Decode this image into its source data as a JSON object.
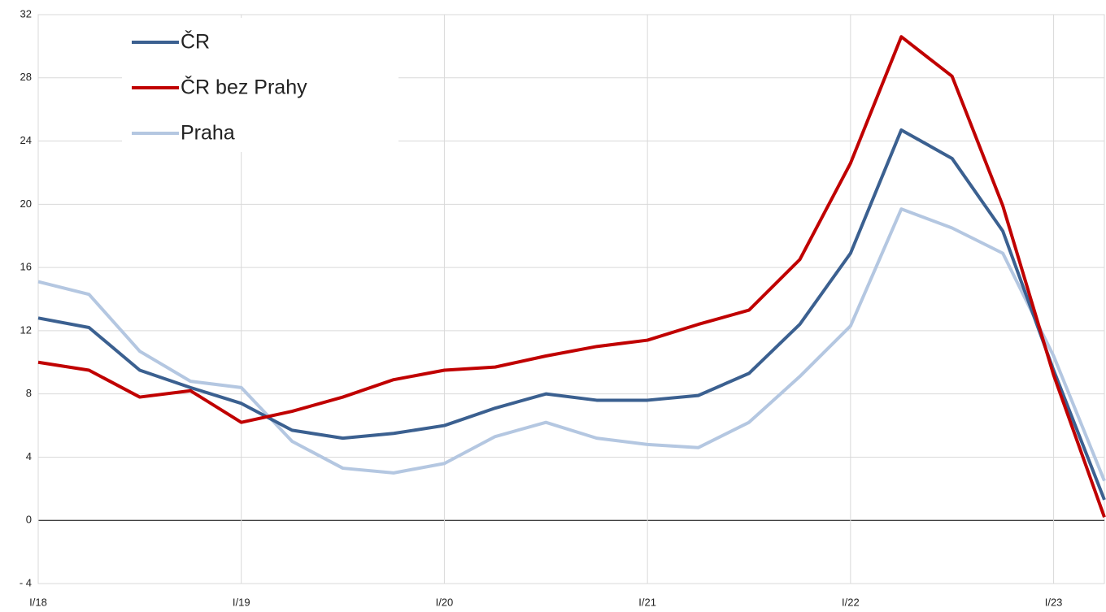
{
  "chart_data": {
    "type": "line",
    "categories": [
      "I/18",
      null,
      null,
      null,
      "I/19",
      null,
      null,
      null,
      "I/20",
      null,
      null,
      null,
      "I/21",
      null,
      null,
      null,
      "I/22",
      null,
      null,
      null,
      "I/23",
      null
    ],
    "series": [
      {
        "name": "ČR",
        "color": "#3b6090",
        "values": [
          12.8,
          12.2,
          9.5,
          8.4,
          7.4,
          5.7,
          5.2,
          5.5,
          6.0,
          7.1,
          8.0,
          7.6,
          7.6,
          7.9,
          9.3,
          12.4,
          16.9,
          24.7,
          22.9,
          18.3,
          9.5,
          1.3
        ]
      },
      {
        "name": "ČR bez Prahy",
        "color": "#c00000",
        "values": [
          10.0,
          9.5,
          7.8,
          8.2,
          6.2,
          6.9,
          7.8,
          8.9,
          9.5,
          9.7,
          10.4,
          11.0,
          11.4,
          12.4,
          13.3,
          16.5,
          22.6,
          30.6,
          28.1,
          19.9,
          9.2,
          0.2
        ]
      },
      {
        "name": "Praha",
        "color": "#b4c7e1",
        "values": [
          15.1,
          14.3,
          10.7,
          8.8,
          8.4,
          5.0,
          3.3,
          3.0,
          3.6,
          5.3,
          6.2,
          5.2,
          4.8,
          4.6,
          6.2,
          9.1,
          12.3,
          19.7,
          18.5,
          16.9,
          10.4,
          2.5
        ]
      }
    ],
    "ylim": [
      -4,
      32
    ],
    "yticks": [
      {
        "value": -4,
        "label": "- 4"
      },
      0,
      4,
      8,
      12,
      16,
      20,
      24,
      28,
      32
    ],
    "grid": true,
    "legend": "top-left"
  }
}
